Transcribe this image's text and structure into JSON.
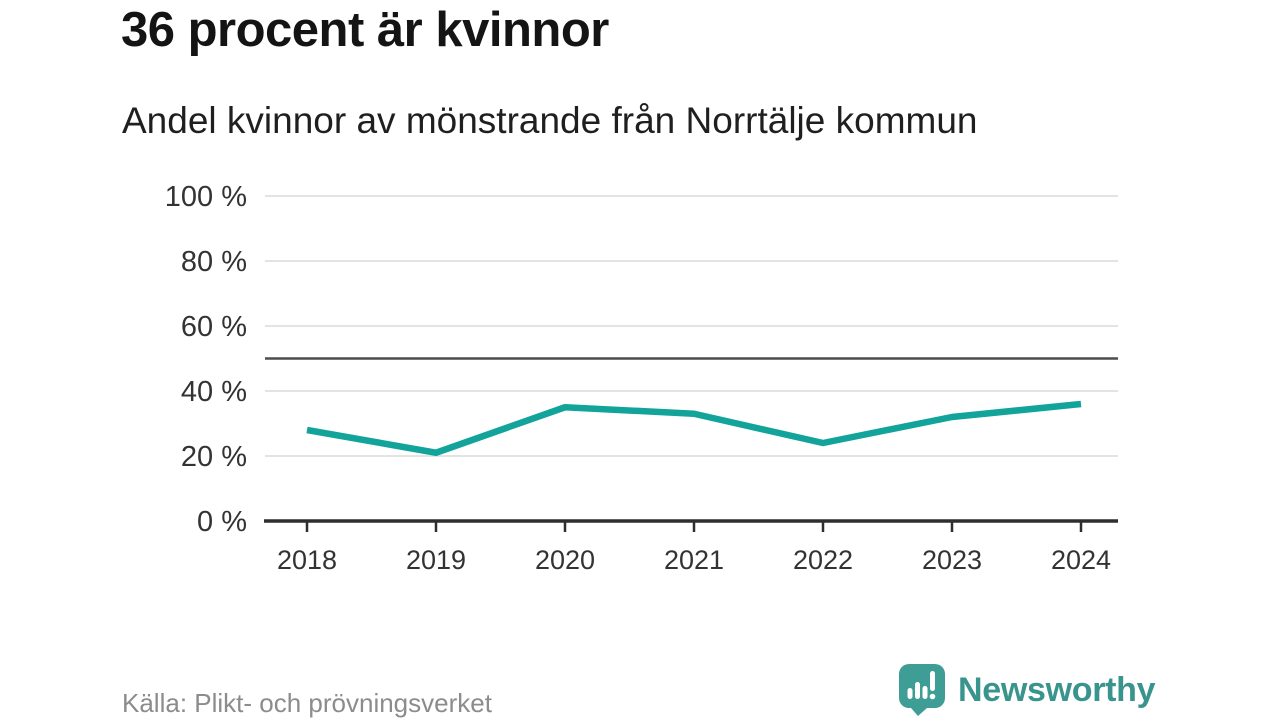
{
  "page": {
    "title": "36 procent är kvinnor",
    "subtitle": "Andel kvinnor av mönstrande från Norrtälje kommun"
  },
  "chart_data": {
    "type": "line",
    "title": "36 procent är kvinnor",
    "subtitle": "Andel kvinnor av mönstrande från Norrtälje kommun",
    "categories": [
      "2018",
      "2019",
      "2020",
      "2021",
      "2022",
      "2023",
      "2024"
    ],
    "series": [
      {
        "name": "Andel kvinnor av mönstrande",
        "values": [
          28,
          21,
          35,
          33,
          24,
          32,
          36
        ]
      }
    ],
    "unit": "%",
    "xlabel": "",
    "ylabel": "",
    "ylim": [
      0,
      100
    ],
    "yticks": [
      0,
      20,
      40,
      60,
      80,
      100
    ],
    "ytick_labels": [
      "0 %",
      "20 %",
      "40 %",
      "60 %",
      "80 %",
      "100 %"
    ],
    "reference_line": {
      "value": 50
    },
    "grid": true,
    "legend": false,
    "colors": {
      "line": "#12a39a",
      "grid": "#e3e3e3",
      "reference": "#4d4d4d",
      "axis": "#2e2e2e",
      "tick_text": "#333333"
    }
  },
  "footer": {
    "source": "Källa: Plikt- och prövningsverket",
    "brand": "Newsworthy",
    "brand_color": "#3a948e",
    "logo_color": "#3e9d94"
  }
}
